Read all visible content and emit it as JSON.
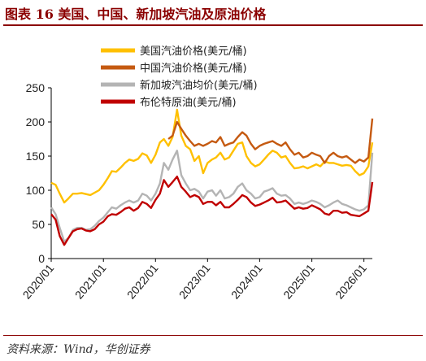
{
  "figure": {
    "title": "图表 16 美国、中国、新加坡汽油及原油价格",
    "source": "资料来源：Wind，华创证券"
  },
  "chart_data": {
    "type": "line",
    "title": "图表 16 美国、中国、新加坡汽油及原油价格",
    "xlabel": "",
    "ylabel": "",
    "ylim": [
      0,
      250
    ],
    "yticks": [
      0,
      50,
      100,
      150,
      200,
      250
    ],
    "xlim": [
      "2020/01",
      "2026/03"
    ],
    "xticks": [
      "2020/01",
      "2021/01",
      "2022/01",
      "2023/01",
      "2024/01",
      "2025/01",
      "2026/01"
    ],
    "grid": false,
    "legend": "top-center",
    "series": [
      {
        "name": "美国汽油价格(美元/桶)",
        "color": "#ffc000",
        "points": [
          [
            "2020/01/01",
            111
          ],
          [
            "2020/02/01",
            108
          ],
          [
            "2020/03/01",
            95
          ],
          [
            "2020/04/01",
            82
          ],
          [
            "2020/05/01",
            88
          ],
          [
            "2020/06/01",
            95
          ],
          [
            "2020/07/01",
            95
          ],
          [
            "2020/08/01",
            96
          ],
          [
            "2020/10/01",
            93
          ],
          [
            "2020/12/01",
            100
          ],
          [
            "2021/01/01",
            108
          ],
          [
            "2021/02/01",
            118
          ],
          [
            "2021/03/01",
            128
          ],
          [
            "2021/04/01",
            127
          ],
          [
            "2021/05/01",
            133
          ],
          [
            "2021/06/01",
            140
          ],
          [
            "2021/07/01",
            145
          ],
          [
            "2021/08/01",
            143
          ],
          [
            "2021/09/01",
            146
          ],
          [
            "2021/10/01",
            154
          ],
          [
            "2021/11/01",
            151
          ],
          [
            "2021/12/01",
            140
          ],
          [
            "2022/01/01",
            152
          ],
          [
            "2022/02/01",
            170
          ],
          [
            "2022/03/01",
            175
          ],
          [
            "2022/04/01",
            165
          ],
          [
            "2022/05/01",
            178
          ],
          [
            "2022/06/01",
            218
          ],
          [
            "2022/07/01",
            180
          ],
          [
            "2022/08/01",
            165
          ],
          [
            "2022/09/01",
            160
          ],
          [
            "2022/10/01",
            143
          ],
          [
            "2022/11/01",
            150
          ],
          [
            "2022/12/01",
            125
          ],
          [
            "2023/01/01",
            140
          ],
          [
            "2023/02/01",
            145
          ],
          [
            "2023/03/01",
            148
          ],
          [
            "2023/04/01",
            155
          ],
          [
            "2023/05/01",
            145
          ],
          [
            "2023/06/01",
            148
          ],
          [
            "2023/07/01",
            158
          ],
          [
            "2023/08/01",
            168
          ],
          [
            "2023/09/01",
            170
          ],
          [
            "2023/10/01",
            150
          ],
          [
            "2023/11/01",
            140
          ],
          [
            "2023/12/01",
            135
          ],
          [
            "2024/01/01",
            138
          ],
          [
            "2024/02/01",
            145
          ],
          [
            "2024/03/01",
            152
          ],
          [
            "2024/04/01",
            158
          ],
          [
            "2024/05/01",
            155
          ],
          [
            "2024/06/01",
            148
          ],
          [
            "2024/07/01",
            150
          ],
          [
            "2024/08/01",
            140
          ],
          [
            "2024/09/01",
            132
          ],
          [
            "2024/10/01",
            133
          ],
          [
            "2024/11/01",
            135
          ],
          [
            "2024/12/01",
            132
          ],
          [
            "2025/01/01",
            135
          ],
          [
            "2025/02/01",
            138
          ],
          [
            "2025/03/01",
            135
          ],
          [
            "2025/04/01",
            142
          ],
          [
            "2025/05/01",
            140
          ],
          [
            "2025/06/01",
            140
          ],
          [
            "2025/07/01",
            138
          ],
          [
            "2025/08/01",
            136
          ],
          [
            "2025/09/01",
            137
          ],
          [
            "2025/10/01",
            136
          ],
          [
            "2025/11/01",
            128
          ],
          [
            "2025/12/01",
            122
          ],
          [
            "2026/01/01",
            125
          ],
          [
            "2026/02/01",
            135
          ],
          [
            "2026/03/01",
            170
          ]
        ]
      },
      {
        "name": "中国汽油价格(美元/桶)",
        "color": "#c55a11",
        "points": [
          [
            "2022/04/01",
            175
          ],
          [
            "2022/05/01",
            180
          ],
          [
            "2022/06/01",
            200
          ],
          [
            "2022/07/01",
            190
          ],
          [
            "2022/08/01",
            180
          ],
          [
            "2022/09/01",
            172
          ],
          [
            "2022/10/01",
            165
          ],
          [
            "2022/11/01",
            168
          ],
          [
            "2022/12/01",
            165
          ],
          [
            "2023/01/01",
            168
          ],
          [
            "2023/02/01",
            172
          ],
          [
            "2023/03/01",
            170
          ],
          [
            "2023/04/01",
            178
          ],
          [
            "2023/05/01",
            165
          ],
          [
            "2023/06/01",
            168
          ],
          [
            "2023/07/01",
            170
          ],
          [
            "2023/08/01",
            178
          ],
          [
            "2023/09/01",
            185
          ],
          [
            "2023/10/01",
            180
          ],
          [
            "2023/11/01",
            168
          ],
          [
            "2023/12/01",
            160
          ],
          [
            "2024/01/01",
            165
          ],
          [
            "2024/02/01",
            168
          ],
          [
            "2024/03/01",
            170
          ],
          [
            "2024/04/01",
            172
          ],
          [
            "2024/05/01",
            168
          ],
          [
            "2024/06/01",
            165
          ],
          [
            "2024/07/01",
            170
          ],
          [
            "2024/08/01",
            160
          ],
          [
            "2024/09/01",
            152
          ],
          [
            "2024/10/01",
            155
          ],
          [
            "2024/11/01",
            148
          ],
          [
            "2024/12/01",
            150
          ],
          [
            "2025/01/01",
            155
          ],
          [
            "2025/02/01",
            152
          ],
          [
            "2025/03/01",
            150
          ],
          [
            "2025/04/01",
            140
          ],
          [
            "2025/05/01",
            150
          ],
          [
            "2025/06/01",
            155
          ],
          [
            "2025/07/01",
            150
          ],
          [
            "2025/08/01",
            148
          ],
          [
            "2025/09/01",
            150
          ],
          [
            "2025/10/01",
            145
          ],
          [
            "2025/11/01",
            140
          ],
          [
            "2025/12/01",
            145
          ],
          [
            "2026/01/01",
            142
          ],
          [
            "2026/02/01",
            148
          ],
          [
            "2026/03/01",
            205
          ]
        ]
      },
      {
        "name": "新加坡汽油均价(美元/桶)",
        "color": "#b4b4b4",
        "points": [
          [
            "2020/01/01",
            75
          ],
          [
            "2020/02/01",
            65
          ],
          [
            "2020/03/01",
            45
          ],
          [
            "2020/04/01",
            25
          ],
          [
            "2020/05/01",
            30
          ],
          [
            "2020/06/01",
            42
          ],
          [
            "2020/07/01",
            45
          ],
          [
            "2020/08/01",
            45
          ],
          [
            "2020/09/01",
            42
          ],
          [
            "2020/10/01",
            43
          ],
          [
            "2020/11/01",
            48
          ],
          [
            "2020/12/01",
            55
          ],
          [
            "2021/01/01",
            60
          ],
          [
            "2021/02/01",
            68
          ],
          [
            "2021/03/01",
            75
          ],
          [
            "2021/04/01",
            73
          ],
          [
            "2021/05/01",
            78
          ],
          [
            "2021/06/01",
            82
          ],
          [
            "2021/07/01",
            85
          ],
          [
            "2021/08/01",
            82
          ],
          [
            "2021/09/01",
            85
          ],
          [
            "2021/10/01",
            95
          ],
          [
            "2021/11/01",
            92
          ],
          [
            "2021/12/01",
            85
          ],
          [
            "2022/01/01",
            95
          ],
          [
            "2022/02/01",
            110
          ],
          [
            "2022/03/01",
            140
          ],
          [
            "2022/04/01",
            130
          ],
          [
            "2022/05/01",
            145
          ],
          [
            "2022/06/01",
            158
          ],
          [
            "2022/07/01",
            122
          ],
          [
            "2022/08/01",
            110
          ],
          [
            "2022/09/01",
            100
          ],
          [
            "2022/10/01",
            102
          ],
          [
            "2022/11/01",
            98
          ],
          [
            "2022/12/01",
            88
          ],
          [
            "2023/01/01",
            98
          ],
          [
            "2023/02/01",
            100
          ],
          [
            "2023/03/01",
            92
          ],
          [
            "2023/04/01",
            100
          ],
          [
            "2023/05/01",
            88
          ],
          [
            "2023/06/01",
            90
          ],
          [
            "2023/07/01",
            95
          ],
          [
            "2023/08/01",
            105
          ],
          [
            "2023/09/01",
            110
          ],
          [
            "2023/10/01",
            100
          ],
          [
            "2023/11/01",
            95
          ],
          [
            "2023/12/01",
            88
          ],
          [
            "2024/01/01",
            90
          ],
          [
            "2024/02/01",
            98
          ],
          [
            "2024/03/01",
            100
          ],
          [
            "2024/04/01",
            103
          ],
          [
            "2024/05/01",
            95
          ],
          [
            "2024/06/01",
            92
          ],
          [
            "2024/07/01",
            93
          ],
          [
            "2024/08/01",
            88
          ],
          [
            "2024/09/01",
            80
          ],
          [
            "2024/10/01",
            82
          ],
          [
            "2024/11/01",
            80
          ],
          [
            "2024/12/01",
            82
          ],
          [
            "2025/01/01",
            85
          ],
          [
            "2025/02/01",
            83
          ],
          [
            "2025/03/01",
            80
          ],
          [
            "2025/04/01",
            75
          ],
          [
            "2025/05/01",
            78
          ],
          [
            "2025/06/01",
            82
          ],
          [
            "2025/07/01",
            85
          ],
          [
            "2025/08/01",
            80
          ],
          [
            "2025/09/01",
            78
          ],
          [
            "2025/10/01",
            75
          ],
          [
            "2025/11/01",
            72
          ],
          [
            "2025/12/01",
            70
          ],
          [
            "2026/01/01",
            72
          ],
          [
            "2026/02/01",
            78
          ],
          [
            "2026/03/01",
            155
          ]
        ]
      },
      {
        "name": "布伦特原油(美元/桶)",
        "color": "#c00000",
        "points": [
          [
            "2020/01/01",
            65
          ],
          [
            "2020/02/01",
            57
          ],
          [
            "2020/03/01",
            33
          ],
          [
            "2020/04/01",
            20
          ],
          [
            "2020/05/01",
            30
          ],
          [
            "2020/06/01",
            40
          ],
          [
            "2020/07/01",
            43
          ],
          [
            "2020/08/01",
            44
          ],
          [
            "2020/09/01",
            41
          ],
          [
            "2020/10/01",
            40
          ],
          [
            "2020/11/01",
            43
          ],
          [
            "2020/12/01",
            50
          ],
          [
            "2021/01/01",
            54
          ],
          [
            "2021/02/01",
            62
          ],
          [
            "2021/03/01",
            65
          ],
          [
            "2021/04/01",
            64
          ],
          [
            "2021/05/01",
            68
          ],
          [
            "2021/06/01",
            73
          ],
          [
            "2021/07/01",
            75
          ],
          [
            "2021/08/01",
            70
          ],
          [
            "2021/09/01",
            74
          ],
          [
            "2021/10/01",
            83
          ],
          [
            "2021/11/01",
            80
          ],
          [
            "2021/12/01",
            74
          ],
          [
            "2022/01/01",
            86
          ],
          [
            "2022/02/01",
            95
          ],
          [
            "2022/03/01",
            115
          ],
          [
            "2022/04/01",
            105
          ],
          [
            "2022/05/01",
            112
          ],
          [
            "2022/06/01",
            120
          ],
          [
            "2022/07/01",
            105
          ],
          [
            "2022/08/01",
            98
          ],
          [
            "2022/09/01",
            90
          ],
          [
            "2022/10/01",
            93
          ],
          [
            "2022/11/01",
            90
          ],
          [
            "2022/12/01",
            80
          ],
          [
            "2023/01/01",
            83
          ],
          [
            "2023/02/01",
            83
          ],
          [
            "2023/03/01",
            78
          ],
          [
            "2023/04/01",
            83
          ],
          [
            "2023/05/01",
            75
          ],
          [
            "2023/06/01",
            75
          ],
          [
            "2023/07/01",
            80
          ],
          [
            "2023/08/01",
            86
          ],
          [
            "2023/09/01",
            93
          ],
          [
            "2023/10/01",
            90
          ],
          [
            "2023/11/01",
            82
          ],
          [
            "2023/12/01",
            77
          ],
          [
            "2024/01/01",
            79
          ],
          [
            "2024/02/01",
            82
          ],
          [
            "2024/03/01",
            85
          ],
          [
            "2024/04/01",
            89
          ],
          [
            "2024/05/01",
            82
          ],
          [
            "2024/06/01",
            83
          ],
          [
            "2024/07/01",
            85
          ],
          [
            "2024/08/01",
            79
          ],
          [
            "2024/09/01",
            73
          ],
          [
            "2024/10/01",
            75
          ],
          [
            "2024/11/01",
            73
          ],
          [
            "2024/12/01",
            74
          ],
          [
            "2025/01/01",
            78
          ],
          [
            "2025/02/01",
            75
          ],
          [
            "2025/03/01",
            72
          ],
          [
            "2025/04/01",
            66
          ],
          [
            "2025/05/01",
            64
          ],
          [
            "2025/06/01",
            70
          ],
          [
            "2025/07/01",
            70
          ],
          [
            "2025/08/01",
            67
          ],
          [
            "2025/09/01",
            68
          ],
          [
            "2025/10/01",
            64
          ],
          [
            "2025/11/01",
            63
          ],
          [
            "2025/12/01",
            62
          ],
          [
            "2026/01/01",
            66
          ],
          [
            "2026/02/01",
            70
          ],
          [
            "2026/03/01",
            112
          ]
        ]
      }
    ]
  }
}
